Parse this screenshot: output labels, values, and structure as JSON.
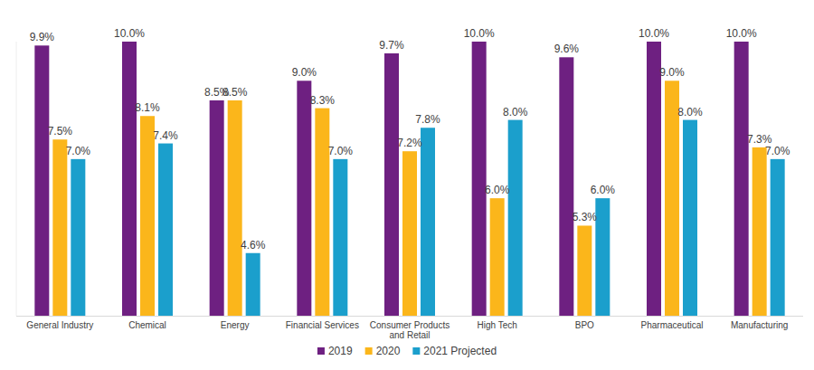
{
  "chart_data": {
    "type": "bar",
    "categories": [
      "General Industry",
      "Chemical",
      "Energy",
      "Financial Services",
      "Consumer Products and Retail",
      "High Tech",
      "BPO",
      "Pharmaceutical",
      "Manufacturing"
    ],
    "series": [
      {
        "name": "2019",
        "color": "#6e2081",
        "values": [
          9.9,
          10.0,
          8.5,
          9.0,
          9.7,
          10.0,
          9.6,
          10.0,
          10.0
        ],
        "value_labels": [
          "9.9%",
          "10.0%",
          "8.5%",
          "9.0%",
          "9.7%",
          "10.0%",
          "9.6%",
          "10.0%",
          "10.0%"
        ]
      },
      {
        "name": "2020",
        "color": "#fbb61b",
        "values": [
          7.5,
          8.1,
          8.5,
          8.3,
          7.2,
          6.0,
          5.3,
          9.0,
          7.3
        ],
        "value_labels": [
          "7.5%",
          "8.1%",
          "8.5%",
          "8.3%",
          "7.2%",
          "6.0%",
          "5.3%",
          "9.0%",
          "7.3%"
        ]
      },
      {
        "name": "2021 Projected",
        "color": "#1b9fcc",
        "values": [
          7.0,
          7.4,
          4.6,
          7.0,
          7.8,
          8.0,
          6.0,
          8.0,
          7.0
        ],
        "value_labels": [
          "7.0%",
          "7.4%",
          "4.6%",
          "7.0%",
          "7.8%",
          "8.0%",
          "6.0%",
          "8.0%",
          "7.0%"
        ]
      }
    ],
    "ylim": [
      3,
      10
    ],
    "yticks": [],
    "tick_labels": "x",
    "data_labels": true,
    "legend": "bottom",
    "grid": false
  }
}
